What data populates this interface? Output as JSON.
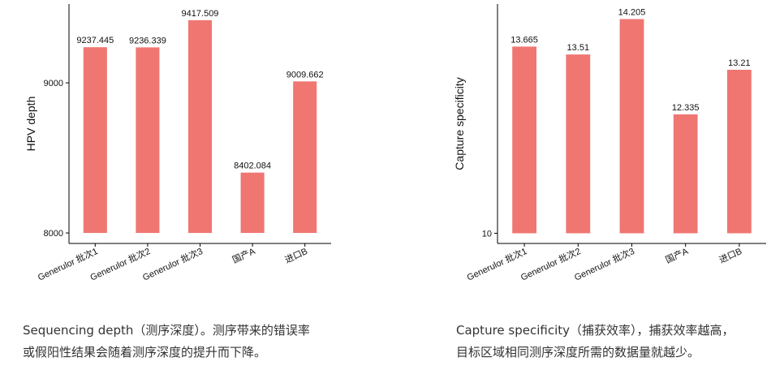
{
  "chart_data": [
    {
      "type": "bar",
      "ylabel": "HPV depth",
      "categories": [
        "Generulor 批次1",
        "Generulor 批次2",
        "Generulor 批次3",
        "国产A",
        "进口B"
      ],
      "values": [
        9237.445,
        9236.339,
        9417.509,
        8402.084,
        9009.662
      ],
      "color": "#f07672",
      "ylim": [
        7930,
        9525
      ],
      "yticks": [
        8000,
        9000
      ]
    },
    {
      "type": "bar",
      "ylabel": "Capture specificity",
      "categories": [
        "Generulor 批次1",
        "Generulor 批次2",
        "Generulor 批次3",
        "国产A",
        "进口B"
      ],
      "values": [
        13.665,
        13.51,
        14.205,
        12.335,
        13.21
      ],
      "color": "#f07672",
      "ylim": [
        9.8,
        14.5
      ],
      "yticks": [
        10
      ]
    }
  ],
  "captions": [
    [
      "Sequencing depth（测序深度）。测序带来的错误率",
      "或假阳性结果会随着测序深度的提升而下降。"
    ],
    [
      "Capture specificity（捕获效率），捕获效率越高，",
      "目标区域相同测序深度所需的数据量就越少。"
    ]
  ]
}
